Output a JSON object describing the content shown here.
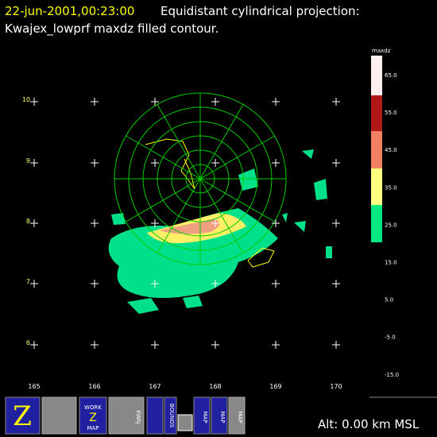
{
  "header": {
    "timestamp": "22-jun-2001,00:23:00",
    "projection": "Equidistant cylindrical projection:",
    "product": "Kwajex_lowprf maxdz filled contour."
  },
  "colorbar": {
    "title": "maxdz",
    "labels": [
      "65.0",
      "55.0",
      "45.0",
      "35.0",
      "25.0",
      "15.0",
      "5.0",
      "-5.0",
      "-15.0"
    ]
  },
  "map": {
    "lon_labels": [
      "165",
      "166",
      "167",
      "168",
      "169",
      "170"
    ],
    "lat_labels": [
      "10",
      "9",
      "8",
      "7",
      "6"
    ]
  },
  "status": {
    "altitude": "Alt: 0.00 km MSL"
  },
  "toolbar": {
    "work_map": [
      "WORK",
      "Z",
      "MAP"
    ],
    "kwaj": "KWAJ",
    "bounds": "BOUNDS",
    "map1": "MAP",
    "map2": "MAP",
    "map3": "MAP"
  }
}
